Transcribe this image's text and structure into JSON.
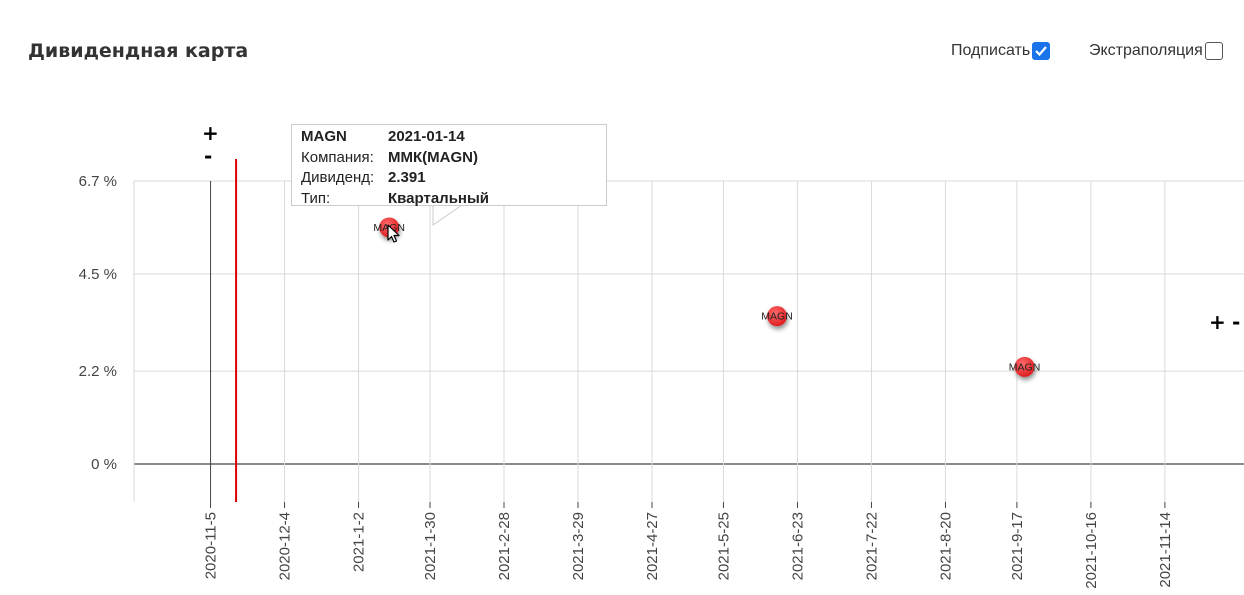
{
  "header": {
    "title": "Дивидендная карта",
    "label_option": "Подписать",
    "label_checked": true,
    "extrapolation_option": "Экстраполяция",
    "extrapolation_checked": false
  },
  "zoom_controls": {
    "plus": "+",
    "minus": "-"
  },
  "tooltip": {
    "ticker": "MAGN",
    "date": "2021-01-14",
    "company_label": "Компания:",
    "company_value": "ММК(MAGN)",
    "dividend_label": "Дивиденд:",
    "dividend_value": "2.391",
    "type_label": "Тип:",
    "type_value": "Квартальный"
  },
  "colors": {
    "point": "#e8282b",
    "today_line": "#e00000",
    "grid": "#d9d9d9",
    "axis": "#444444",
    "check": "#1a73e8"
  },
  "chart_data": {
    "type": "scatter",
    "title": "Дивидендная карта",
    "xlabel": "",
    "ylabel": "",
    "x_ticks": [
      "2020-11-5",
      "2020-12-4",
      "2021-1-2",
      "2021-1-30",
      "2021-2-28",
      "2021-3-29",
      "2021-4-27",
      "2021-5-25",
      "2021-6-23",
      "2021-7-22",
      "2021-8-20",
      "2021-9-17",
      "2021-10-16",
      "2021-11-14"
    ],
    "y_ticks": [
      "0 %",
      "2.2 %",
      "4.5 %",
      "6.7 %"
    ],
    "y_tick_values": [
      0,
      2.2,
      4.5,
      6.7
    ],
    "xlim": [
      "2020-10-06",
      "2021-12-15"
    ],
    "ylim": [
      -0.9,
      6.7
    ],
    "today": "2020-11-15",
    "points": [
      {
        "label": "MAGN",
        "x": "2021-01-14",
        "y": 5.6
      },
      {
        "label": "MAGN",
        "x": "2021-06-15",
        "y": 3.5
      },
      {
        "label": "MAGN",
        "x": "2021-09-20",
        "y": 2.3
      }
    ],
    "grid": true
  }
}
